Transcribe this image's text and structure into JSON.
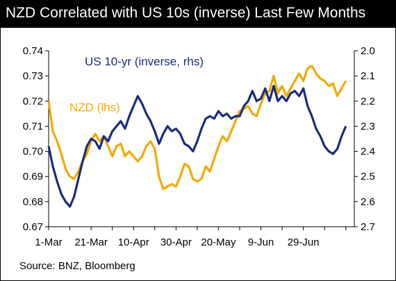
{
  "title": "NZD Correlated with US 10s (inverse) Last Few Months",
  "source": "Source: BNZ, Bloomberg",
  "chart_data": {
    "type": "line",
    "title": "NZD Correlated with US 10s (inverse) Last Few Months",
    "x_tick_labels": [
      "1-Mar",
      "21-Mar",
      "10-Apr",
      "30-Apr",
      "20-May",
      "9-Jun",
      "29-Jun"
    ],
    "x_range_days": [
      0,
      144
    ],
    "y_left": {
      "lim": [
        0.67,
        0.74
      ],
      "ticks": [
        "0.67",
        "0.68",
        "0.69",
        "0.70",
        "0.71",
        "0.72",
        "0.73",
        "0.74"
      ]
    },
    "y_right": {
      "lim": [
        2.7,
        2.0
      ],
      "inverted": true,
      "ticks": [
        "2.0",
        "2.1",
        "2.2",
        "2.3",
        "2.4",
        "2.5",
        "2.6",
        "2.7"
      ]
    },
    "legend": [
      {
        "label": "US 10-yr (inverse, rhs)",
        "color": "#1a2b7a"
      },
      {
        "label": "NZD (lhs)",
        "color": "#f2a900"
      }
    ],
    "series": [
      {
        "name": "NZD (lhs)",
        "axis": "left",
        "color": "#f2a900",
        "x": [
          0,
          2,
          4,
          6,
          8,
          10,
          12,
          14,
          16,
          18,
          20,
          22,
          24,
          26,
          28,
          30,
          32,
          34,
          36,
          38,
          40,
          42,
          44,
          46,
          48,
          50,
          52,
          54,
          56,
          58,
          60,
          62,
          64,
          66,
          68,
          70,
          72,
          74,
          76,
          78,
          80,
          82,
          84,
          86,
          88,
          90,
          92,
          94,
          96,
          98,
          100,
          102,
          104,
          106,
          108,
          110,
          112,
          114,
          116,
          118,
          120,
          122,
          124,
          126,
          128,
          130,
          132,
          134,
          136,
          138,
          140
        ],
        "y": [
          0.72,
          0.708,
          0.704,
          0.699,
          0.693,
          0.69,
          0.689,
          0.692,
          0.696,
          0.699,
          0.704,
          0.707,
          0.704,
          0.706,
          0.702,
          0.698,
          0.702,
          0.703,
          0.698,
          0.7,
          0.698,
          0.696,
          0.698,
          0.702,
          0.704,
          0.701,
          0.69,
          0.685,
          0.686,
          0.687,
          0.686,
          0.69,
          0.695,
          0.694,
          0.689,
          0.688,
          0.689,
          0.694,
          0.692,
          0.697,
          0.702,
          0.706,
          0.704,
          0.708,
          0.712,
          0.716,
          0.717,
          0.718,
          0.715,
          0.714,
          0.719,
          0.723,
          0.724,
          0.73,
          0.723,
          0.726,
          0.722,
          0.725,
          0.728,
          0.731,
          0.728,
          0.733,
          0.734,
          0.731,
          0.729,
          0.728,
          0.726,
          0.727,
          0.722,
          0.725,
          0.728
        ]
      },
      {
        "name": "US 10-yr (inverse, rhs)",
        "axis": "right",
        "color": "#1a2b7a",
        "x": [
          0,
          2,
          4,
          6,
          8,
          10,
          12,
          14,
          16,
          18,
          20,
          22,
          24,
          26,
          28,
          30,
          32,
          34,
          36,
          38,
          40,
          42,
          44,
          46,
          48,
          50,
          52,
          54,
          56,
          58,
          60,
          62,
          64,
          66,
          68,
          70,
          72,
          74,
          76,
          78,
          80,
          82,
          84,
          86,
          88,
          90,
          92,
          94,
          96,
          98,
          100,
          102,
          104,
          106,
          108,
          110,
          112,
          114,
          116,
          118,
          120,
          122,
          124,
          126,
          128,
          130,
          132,
          134,
          136,
          138,
          140
        ],
        "y": [
          2.38,
          2.46,
          2.52,
          2.57,
          2.6,
          2.62,
          2.58,
          2.51,
          2.44,
          2.38,
          2.35,
          2.36,
          2.39,
          2.34,
          2.36,
          2.32,
          2.3,
          2.28,
          2.31,
          2.26,
          2.22,
          2.18,
          2.21,
          2.25,
          2.28,
          2.32,
          2.37,
          2.33,
          2.3,
          2.32,
          2.31,
          2.33,
          2.37,
          2.38,
          2.4,
          2.36,
          2.31,
          2.27,
          2.26,
          2.27,
          2.24,
          2.26,
          2.25,
          2.27,
          2.26,
          2.26,
          2.22,
          2.2,
          2.16,
          2.2,
          2.19,
          2.15,
          2.2,
          2.14,
          2.2,
          2.18,
          2.2,
          2.17,
          2.16,
          2.18,
          2.15,
          2.22,
          2.26,
          2.31,
          2.34,
          2.38,
          2.4,
          2.41,
          2.39,
          2.34,
          2.3
        ]
      }
    ]
  }
}
